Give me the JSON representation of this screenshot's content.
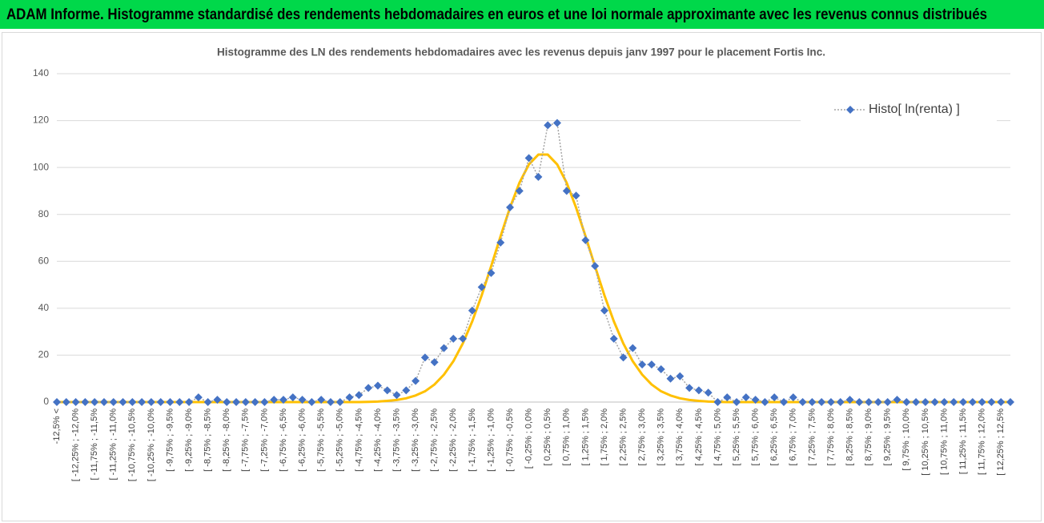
{
  "header": {
    "title": "ADAM Informe. Histogramme standardisé des rendements hebdomadaires en euros et une loi normale approximante avec les revenus connus distribués"
  },
  "chart_data": {
    "type": "line",
    "title": "Histogramme des LN des rendements hebdomadaires avec les revenus depuis janv 1997 pour le placement Fortis Inc.",
    "categories": [
      "-12,5% <",
      null,
      "[ -12,25% ; -12,0%",
      null,
      "[ -11,75% ; -11,5%",
      null,
      "[ -11,25% ; -11,0%",
      null,
      "[ -10,75% ; -10,5%",
      null,
      "[ -10,25% ; -10,0%",
      null,
      "[ -9,75% ; -9,5%",
      null,
      "[ -9,25% ; -9,0%",
      null,
      "[ -8,75% ; -8,5%",
      null,
      "[ -8,25% ; -8,0%",
      null,
      "[ -7,75% ; -7,5%",
      null,
      "[ -7,25% ; -7,0%",
      null,
      "[ -6,75% ; -6,5%",
      null,
      "[ -6,25% ; -6,0%",
      null,
      "[ -5,75% ; -5,5%",
      null,
      "[ -5,25% ; -5,0%",
      null,
      "[ -4,75% ; -4,5%",
      null,
      "[ -4,25% ; -4,0%",
      null,
      "[ -3,75% ; -3,5%",
      null,
      "[ -3,25% ; -3,0%",
      null,
      "[ -2,75% ; -2,5%",
      null,
      "[ -2,25% ; -2,0%",
      null,
      "[ -1,75% ; -1,5%",
      null,
      "[ -1,25% ; -1,0%",
      null,
      "[ -0,75% ; -0,5%",
      null,
      "[ -0,25% ; 0,0%",
      null,
      "[ 0,25% ; 0,5%",
      null,
      "[ 0,75% ; 1,0%",
      null,
      "[ 1,25% ; 1,5%",
      null,
      "[ 1,75% ; 2,0%",
      null,
      "[ 2,25% ; 2,5%",
      null,
      "[ 2,75% ; 3,0%",
      null,
      "[ 3,25% ; 3,5%",
      null,
      "[ 3,75% ; 4,0%",
      null,
      "[ 4,25% ; 4,5%",
      null,
      "[ 4,75% ; 5,0%",
      null,
      "[ 5,25% ; 5,5%",
      null,
      "[ 5,75% ; 6,0%",
      null,
      "[ 6,25% ; 6,5%",
      null,
      "[ 6,75% ; 7,0%",
      null,
      "[ 7,25% ; 7,5%",
      null,
      "[ 7,75% ; 8,0%",
      null,
      "[ 8,25% ; 8,5%",
      null,
      "[ 8,75% ; 9,0%",
      null,
      "[ 9,25% ; 9,5%",
      null,
      "[ 9,75% ; 10,0%",
      null,
      "[ 10,25% ; 10,5%",
      null,
      "[ 10,75% ; 11,0%",
      null,
      "[ 11,25% ; 11,5%",
      null,
      "[ 11,75% ; 12,0%",
      null,
      "[ 12,25% ; 12,5%",
      null
    ],
    "series": [
      {
        "name": "Histo[ ln(renta) ]",
        "color": "#4472c4",
        "line_color": "#a5a5a5",
        "line_style": "dotted",
        "marker": "diamond",
        "values": [
          0,
          0,
          0,
          0,
          0,
          0,
          0,
          0,
          0,
          0,
          0,
          0,
          0,
          0,
          0,
          2,
          0,
          1,
          0,
          0,
          0,
          0,
          0,
          1,
          1,
          2,
          1,
          0,
          1,
          0,
          0,
          2,
          3,
          6,
          7,
          5,
          3,
          5,
          9,
          19,
          17,
          23,
          27,
          27,
          39,
          49,
          55,
          68,
          83,
          90,
          104,
          96,
          118,
          119,
          90,
          88,
          69,
          58,
          39,
          27,
          19,
          23,
          16,
          16,
          14,
          10,
          11,
          6,
          5,
          4,
          0,
          2,
          0,
          2,
          1,
          0,
          2,
          0,
          2,
          0,
          0,
          0,
          0,
          0,
          1,
          0,
          0,
          0,
          0,
          1,
          0,
          0,
          0,
          0,
          0,
          0,
          0,
          0,
          0,
          0,
          0,
          0
        ]
      },
      {
        "color": "#ffc000",
        "line_style": "solid",
        "marker": "none",
        "values": [
          0,
          0,
          0,
          0,
          0,
          0,
          0,
          0,
          0,
          0,
          0,
          0,
          0,
          0,
          0,
          0,
          0,
          0,
          0,
          0,
          0,
          0,
          0,
          0,
          0,
          0,
          0,
          0,
          0,
          0,
          0,
          0,
          0,
          0.1,
          0.2,
          0.5,
          0.9,
          1.6,
          2.8,
          4.6,
          7.5,
          11.7,
          17.4,
          25.0,
          34.4,
          45.5,
          57.9,
          70.7,
          82.9,
          93.5,
          101.3,
          105.5,
          105.5,
          101.3,
          93.5,
          82.9,
          70.7,
          57.9,
          45.5,
          34.4,
          25.0,
          17.4,
          11.7,
          7.5,
          4.6,
          2.8,
          1.6,
          0.9,
          0.5,
          0.2,
          0.1,
          0,
          0,
          0,
          0,
          0,
          0,
          0,
          0,
          0,
          0,
          0,
          0,
          0,
          0,
          0,
          0,
          0,
          0,
          0,
          0,
          0,
          0,
          0,
          0,
          0,
          0,
          0,
          0,
          0,
          0,
          0
        ]
      }
    ],
    "ylim": [
      0,
      140
    ],
    "yticks": [
      0,
      20,
      40,
      60,
      80,
      100,
      120,
      140
    ],
    "grid": true,
    "legend": "upper right"
  }
}
